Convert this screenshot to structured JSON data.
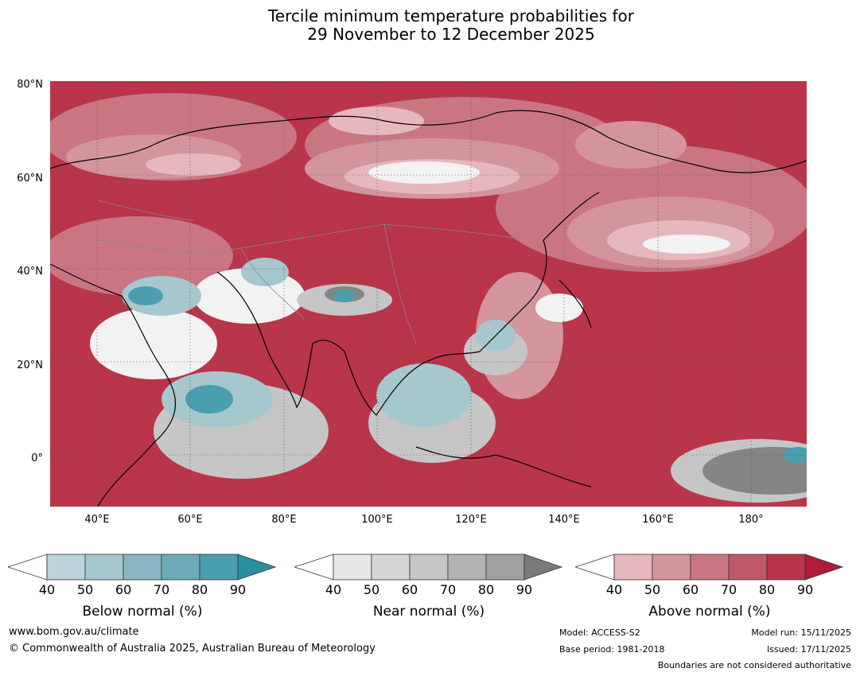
{
  "title": {
    "line1": "Tercile minimum temperature probabilities for",
    "line2": "29 November to 12 December 2025"
  },
  "map": {
    "lat_labels": [
      "80°N",
      "60°N",
      "40°N",
      "20°N",
      "0°"
    ],
    "lon_labels": [
      "40°E",
      "60°E",
      "80°E",
      "100°E",
      "120°E",
      "140°E",
      "160°E",
      "180°"
    ],
    "lon_range": [
      30,
      192
    ],
    "lat_range": [
      -10,
      81
    ]
  },
  "legends": [
    {
      "caption": "Below normal (%)",
      "ticks": [
        "40",
        "50",
        "60",
        "70",
        "80",
        "90"
      ],
      "colors": [
        "#bdd3da",
        "#a6c7cd",
        "#8ab5c1",
        "#6aabb7",
        "#4a9fae",
        "#2a8fa0"
      ]
    },
    {
      "caption": "Near normal (%)",
      "ticks": [
        "40",
        "50",
        "60",
        "70",
        "80",
        "90"
      ],
      "colors": [
        "#e6e6e6",
        "#d6d6d6",
        "#c6c6c6",
        "#b3b3b3",
        "#a0a0a0",
        "#7a7a7a"
      ]
    },
    {
      "caption": "Above normal (%)",
      "ticks": [
        "40",
        "50",
        "60",
        "70",
        "80",
        "90"
      ],
      "colors": [
        "#e6b8be",
        "#d4949b",
        "#c97682",
        "#c0586a",
        "#b93549",
        "#b01c38"
      ]
    }
  ],
  "colors": {
    "above_strong": "#b01c38",
    "above_mid": "#c0586a",
    "above_weak": "#d4949b",
    "near": "#c6c6c6",
    "near_strong": "#858585",
    "below": "#8ab5c1",
    "below_strong": "#2a8fa0",
    "neutral": "#f2f2f2"
  },
  "footer": {
    "website": "www.bom.gov.au/climate",
    "copyright": "© Commonwealth of Australia 2025, Australian Bureau of Meteorology",
    "model": "Model: ACCESS-S2",
    "base_period": "Base period: 1981-2018",
    "model_run": "Model run: 15/11/2025",
    "issued": "Issued: 17/11/2025",
    "boundaries": "Boundaries are not considered authoritative"
  }
}
